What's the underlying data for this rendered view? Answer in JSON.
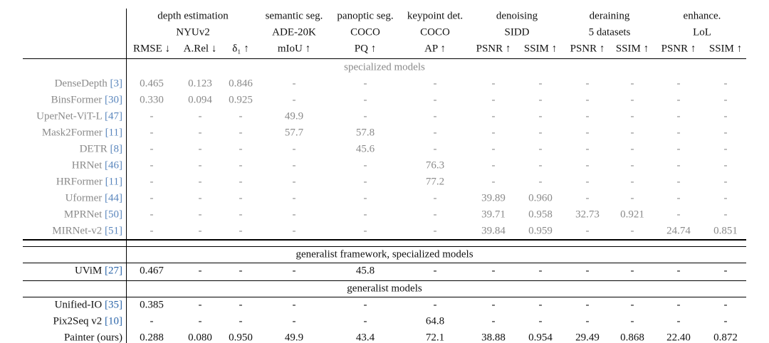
{
  "header": {
    "groups": [
      "depth estimation",
      "semantic seg.",
      "panoptic seg.",
      "keypoint det.",
      "denoising",
      "deraining",
      "enhance."
    ],
    "datasets": [
      "NYUv2",
      "ADE-20K",
      "COCO",
      "COCO",
      "SIDD",
      "5 datasets",
      "LoL"
    ],
    "metrics": [
      "RMSE ↓",
      "A.Rel ↓",
      "δ₁ ↑",
      "mIoU ↑",
      "PQ ↑",
      "AP ↑",
      "PSNR ↑",
      "SSIM ↑",
      "PSNR ↑",
      "SSIM ↑",
      "PSNR ↑",
      "SSIM ↑"
    ]
  },
  "sections": [
    {
      "title": "specialized models",
      "rows": [
        {
          "model": "DenseDepth",
          "cite": "[3]",
          "cells": [
            "0.465",
            "0.123",
            "0.846",
            "-",
            "-",
            "-",
            "-",
            "-",
            "-",
            "-",
            "-",
            "-"
          ]
        },
        {
          "model": "BinsFormer",
          "cite": "[30]",
          "cells": [
            "0.330",
            "0.094",
            "0.925",
            "-",
            "-",
            "-",
            "-",
            "-",
            "-",
            "-",
            "-",
            "-"
          ]
        },
        {
          "model": "UperNet-ViT-L",
          "cite": "[47]",
          "cells": [
            "-",
            "-",
            "-",
            "49.9",
            "-",
            "-",
            "-",
            "-",
            "-",
            "-",
            "-",
            "-"
          ]
        },
        {
          "model": "Mask2Former",
          "cite": "[11]",
          "cells": [
            "-",
            "-",
            "-",
            "57.7",
            "57.8",
            "-",
            "-",
            "-",
            "-",
            "-",
            "-",
            "-"
          ]
        },
        {
          "model": "DETR",
          "cite": "[8]",
          "cells": [
            "-",
            "-",
            "-",
            "-",
            "45.6",
            "-",
            "-",
            "-",
            "-",
            "-",
            "-",
            "-"
          ]
        },
        {
          "model": "HRNet",
          "cite": "[46]",
          "cells": [
            "-",
            "-",
            "-",
            "-",
            "-",
            "76.3",
            "-",
            "-",
            "-",
            "-",
            "-",
            "-"
          ]
        },
        {
          "model": "HRFormer",
          "cite": "[11]",
          "cells": [
            "-",
            "-",
            "-",
            "-",
            "-",
            "77.2",
            "-",
            "-",
            "-",
            "-",
            "-",
            "-"
          ]
        },
        {
          "model": "Uformer",
          "cite": "[44]",
          "cells": [
            "-",
            "-",
            "-",
            "-",
            "-",
            "-",
            "39.89",
            "0.960",
            "-",
            "-",
            "-",
            "-"
          ]
        },
        {
          "model": "MPRNet",
          "cite": "[50]",
          "cells": [
            "-",
            "-",
            "-",
            "-",
            "-",
            "-",
            "39.71",
            "0.958",
            "32.73",
            "0.921",
            "-",
            "-"
          ]
        },
        {
          "model": "MIRNet-v2",
          "cite": "[51]",
          "cells": [
            "-",
            "-",
            "-",
            "-",
            "-",
            "-",
            "39.84",
            "0.959",
            "-",
            "-",
            "24.74",
            "0.851"
          ]
        }
      ]
    },
    {
      "title": "generalist framework, specialized models",
      "rows": [
        {
          "model": "UViM",
          "cite": "[27]",
          "cells": [
            "0.467",
            "-",
            "-",
            "-",
            "45.8",
            "-",
            "-",
            "-",
            "-",
            "-",
            "-",
            "-"
          ]
        }
      ]
    },
    {
      "title": "generalist models",
      "rows": [
        {
          "model": "Unified-IO",
          "cite": "[35]",
          "cells": [
            "0.385",
            "-",
            "-",
            "-",
            "-",
            "-",
            "-",
            "-",
            "-",
            "-",
            "-",
            "-"
          ]
        },
        {
          "model": "Pix2Seq v2",
          "cite": "[10]",
          "cells": [
            "-",
            "-",
            "-",
            "-",
            "-",
            "64.8",
            "-",
            "-",
            "-",
            "-",
            "-",
            "-"
          ]
        },
        {
          "model": "Painter (ours)",
          "cells": [
            "0.288",
            "0.080",
            "0.950",
            "49.9",
            "43.4",
            "72.1",
            "38.88",
            "0.954",
            "29.49",
            "0.868",
            "22.40",
            "0.872"
          ]
        }
      ]
    }
  ]
}
